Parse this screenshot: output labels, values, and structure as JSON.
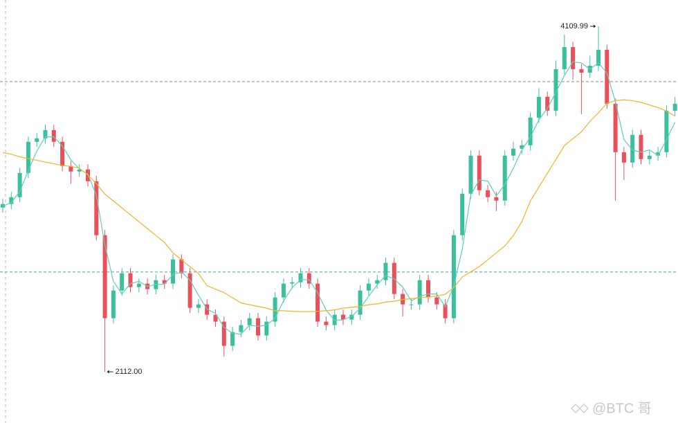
{
  "chart_data": {
    "type": "candlestick",
    "up_color": "#3cbf9c",
    "down_color": "#e8505b",
    "ylim": [
      1816,
      4262
    ],
    "high_label": "4109.99",
    "low_label": "2112.00",
    "watermark": "@BTC 哥",
    "price_lines": [
      {
        "value": 3790,
        "color": "#8a8a8a"
      },
      {
        "value": 2689,
        "color": "#3aa99a"
      }
    ],
    "candles": [
      [
        3062,
        3112,
        3032,
        3082
      ],
      [
        3082,
        3152,
        3052,
        3122
      ],
      [
        3122,
        3292,
        3092,
        3262
      ],
      [
        3262,
        3472,
        3232,
        3442
      ],
      [
        3442,
        3492,
        3412,
        3462
      ],
      [
        3462,
        3540,
        3432,
        3510
      ],
      [
        3510,
        3540,
        3412,
        3442
      ],
      [
        3442,
        3472,
        3272,
        3302
      ],
      [
        3302,
        3332,
        3200,
        3270
      ],
      [
        3270,
        3312,
        3240,
        3282
      ],
      [
        3282,
        3312,
        3184,
        3214
      ],
      [
        3214,
        3244,
        2872,
        2902
      ],
      [
        2902,
        2932,
        2112.0,
        2422
      ],
      [
        2422,
        2612,
        2392,
        2582
      ],
      [
        2582,
        2712,
        2552,
        2682
      ],
      [
        2682,
        2712,
        2572,
        2602
      ],
      [
        2602,
        2652,
        2572,
        2622
      ],
      [
        2622,
        2652,
        2560,
        2590
      ],
      [
        2590,
        2672,
        2560,
        2642
      ],
      [
        2642,
        2672,
        2592,
        2622
      ],
      [
        2622,
        2792,
        2592,
        2762
      ],
      [
        2762,
        2792,
        2652,
        2682
      ],
      [
        2682,
        2712,
        2452,
        2482
      ],
      [
        2482,
        2532,
        2452,
        2502
      ],
      [
        2502,
        2532,
        2412,
        2442
      ],
      [
        2442,
        2472,
        2372,
        2402
      ],
      [
        2402,
        2432,
        2200,
        2262
      ],
      [
        2262,
        2372,
        2232,
        2342
      ],
      [
        2342,
        2412,
        2312,
        2382
      ],
      [
        2382,
        2452,
        2352,
        2422
      ],
      [
        2422,
        2452,
        2292,
        2322
      ],
      [
        2322,
        2432,
        2292,
        2402
      ],
      [
        2402,
        2572,
        2372,
        2542
      ],
      [
        2542,
        2652,
        2512,
        2622
      ],
      [
        2622,
        2660,
        2592,
        2630
      ],
      [
        2630,
        2712,
        2600,
        2682
      ],
      [
        2682,
        2712,
        2592,
        2622
      ],
      [
        2622,
        2652,
        2372,
        2402
      ],
      [
        2402,
        2432,
        2352,
        2382
      ],
      [
        2382,
        2472,
        2352,
        2442
      ],
      [
        2442,
        2472,
        2384,
        2414
      ],
      [
        2414,
        2472,
        2384,
        2442
      ],
      [
        2442,
        2612,
        2412,
        2582
      ],
      [
        2582,
        2652,
        2552,
        2622
      ],
      [
        2622,
        2672,
        2592,
        2642
      ],
      [
        2642,
        2772,
        2612,
        2742
      ],
      [
        2742,
        2772,
        2532,
        2562
      ],
      [
        2562,
        2592,
        2432,
        2502
      ],
      [
        2502,
        2532,
        2472,
        2502
      ],
      [
        2502,
        2672,
        2472,
        2642
      ],
      [
        2642,
        2672,
        2512,
        2542
      ],
      [
        2542,
        2572,
        2472,
        2502
      ],
      [
        2502,
        2532,
        2392,
        2422
      ],
      [
        2422,
        2932,
        2392,
        2902
      ],
      [
        2902,
        3172,
        2872,
        3142
      ],
      [
        3142,
        3392,
        3112,
        3362
      ],
      [
        3362,
        3392,
        3132,
        3162
      ],
      [
        3162,
        3192,
        3092,
        3122
      ],
      [
        3122,
        3152,
        3042,
        3102
      ],
      [
        3102,
        3392,
        3072,
        3362
      ],
      [
        3362,
        3442,
        3332,
        3402
      ],
      [
        3402,
        3452,
        3372,
        3422
      ],
      [
        3422,
        3612,
        3392,
        3582
      ],
      [
        3582,
        3752,
        3552,
        3702
      ],
      [
        3702,
        3732,
        3592,
        3622
      ],
      [
        3622,
        3912,
        3592,
        3862
      ],
      [
        3862,
        4062,
        3832,
        3990
      ],
      [
        3990,
        4020,
        3800,
        3862
      ],
      [
        3862,
        3892,
        3602,
        3842
      ],
      [
        3842,
        3940,
        3812,
        3882
      ],
      [
        3882,
        4109.99,
        3852,
        3974
      ],
      [
        3974,
        4004,
        3632,
        3662
      ],
      [
        3662,
        3692,
        3102,
        3382
      ],
      [
        3382,
        3412,
        3222,
        3322
      ],
      [
        3322,
        3512,
        3292,
        3482
      ],
      [
        3482,
        3512,
        3312,
        3342
      ],
      [
        3342,
        3392,
        3312,
        3362
      ],
      [
        3362,
        3412,
        3332,
        3382
      ],
      [
        3382,
        3652,
        3352,
        3622
      ],
      [
        3622,
        3702,
        3592,
        3662
      ]
    ],
    "series": [
      {
        "color": "#5ccfbd",
        "values": [
          3070,
          3090,
          3155,
          3275,
          3389,
          3471,
          3471,
          3418,
          3338,
          3285,
          3255,
          3133,
          2846,
          2635,
          2562,
          2622,
          2635,
          2605,
          2618,
          2618,
          2675,
          2689,
          2642,
          2555,
          2475,
          2449,
          2369,
          2335,
          2329,
          2382,
          2375,
          2382,
          2422,
          2522,
          2598,
          2645,
          2645,
          2569,
          2469,
          2409,
          2413,
          2433,
          2479,
          2549,
          2615,
          2669,
          2649,
          2602,
          2522,
          2549,
          2562,
          2562,
          2489,
          2609,
          2822,
          3135,
          3222,
          3215,
          3129,
          3195,
          3289,
          3395,
          3469,
          3569,
          3635,
          3729,
          3825,
          3905,
          3898,
          3862,
          3899,
          3839,
          3673,
          3455,
          3395,
          3382,
          3395,
          3362,
          3455,
          3555
        ]
      },
      {
        "color": "#f0b429",
        "values": [
          3380,
          3370,
          3355,
          3345,
          3335,
          3325,
          3315,
          3305,
          3300,
          3290,
          3250,
          3200,
          3140,
          3100,
          3060,
          3020,
          2980,
          2940,
          2900,
          2860,
          2800,
          2760,
          2720,
          2680,
          2610,
          2590,
          2570,
          2540,
          2510,
          2500,
          2490,
          2480,
          2465,
          2465,
          2462,
          2460,
          2460,
          2462,
          2465,
          2470,
          2480,
          2485,
          2490,
          2500,
          2505,
          2515,
          2520,
          2530,
          2535,
          2540,
          2545,
          2550,
          2560,
          2600,
          2660,
          2690,
          2720,
          2760,
          2800,
          2840,
          2900,
          2980,
          3100,
          3180,
          3260,
          3340,
          3420,
          3460,
          3500,
          3560,
          3610,
          3665,
          3680,
          3685,
          3680,
          3670,
          3655,
          3640,
          3620,
          3590
        ]
      }
    ]
  }
}
